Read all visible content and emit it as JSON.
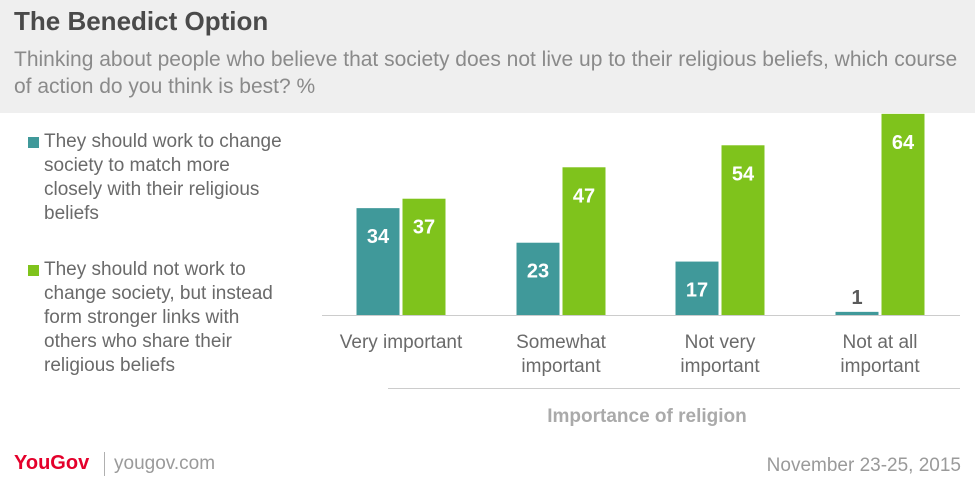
{
  "title": "The Benedict Option",
  "subtitle": "Thinking about people who believe that society does not live up to their religious beliefs, which course of action do you think is best? %",
  "legend": [
    {
      "label": "They should work to change society to match more closely with their religious beliefs",
      "color": "#40999a"
    },
    {
      "label": "They should not work to change society, but instead form stronger links with others who share their religious beliefs",
      "color": "#7fc31c"
    }
  ],
  "footer": {
    "logo": "YouGov",
    "site": "yougov.com",
    "date": "November 23-25, 2015"
  },
  "chart_data": {
    "type": "bar",
    "xlabel": "Importance of religion",
    "ylabel": "",
    "ylim": [
      0,
      70
    ],
    "categories": [
      "Very important",
      "Somewhat important",
      "Not very important",
      "Not at all important"
    ],
    "category_lines": [
      [
        "Very important"
      ],
      [
        "Somewhat",
        "important"
      ],
      [
        "Not very",
        "important"
      ],
      [
        "Not at all",
        "important"
      ]
    ],
    "series": [
      {
        "name": "They should work to change society to match more closely with their religious beliefs",
        "color": "#40999a",
        "values": [
          34,
          23,
          17,
          1
        ]
      },
      {
        "name": "They should not work to change society, but instead form stronger links with others who share their religious beliefs",
        "color": "#7fc31c",
        "values": [
          37,
          47,
          54,
          64
        ]
      }
    ],
    "data_labels": true,
    "grid": false,
    "legend_position": "left"
  }
}
